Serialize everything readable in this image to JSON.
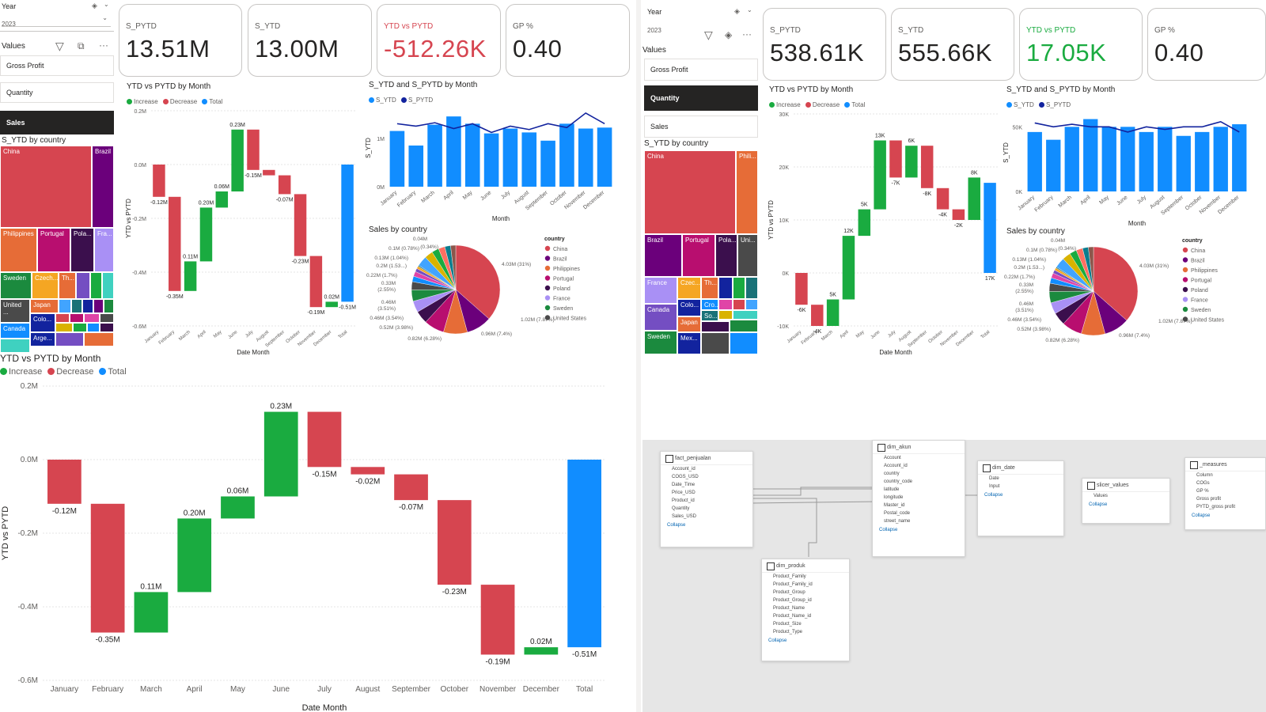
{
  "left_panel": {
    "slicer": {
      "title": "Year",
      "value": "2023"
    },
    "values_header": "Values",
    "values": [
      "Gross Profit",
      "Quantity",
      "Sales"
    ],
    "selected": "Sales",
    "kpis": [
      {
        "label": "S_PYTD",
        "value": "13.51M"
      },
      {
        "label": "S_YTD",
        "value": "13.00M"
      },
      {
        "label": "YTD vs PYTD",
        "value": "-512.26K",
        "color": "#d13438"
      },
      {
        "label": "GP %",
        "value": "0.40"
      }
    ],
    "treemap_title": "S_YTD by country",
    "treemap_labels": [
      "China",
      "Brazil",
      "Philippines",
      "Portugal",
      "Pola...",
      "Fra...",
      "Sweden",
      "Czech...",
      "Th...",
      "United ...",
      "Japan",
      "Colo...",
      "Canada",
      "Arge..."
    ],
    "waterfall_title": "YTD vs PYTD by Month",
    "combo_title": "S_YTD and S_PYTD by Month",
    "pie_title": "Sales by country",
    "pie_labels": [
      "0.04M",
      "0.1M (0.78%)",
      "(0.34%)",
      "0.13M (1.04%)",
      "0.2M (1.53...)",
      "0.22M (1.7%)",
      "0.33M",
      "(2.55%)",
      "0.46M",
      "(3.51%)",
      "0.46M (3.54%)",
      "0.52M (3.98%)",
      "0.82M (6.28%)",
      "4.03M (31%)",
      "1.02M (7.87%)",
      "0.96M (7.4%)"
    ]
  },
  "right_panel": {
    "slicer": {
      "title": "Year",
      "value": "2023"
    },
    "values_header": "Values",
    "values": [
      "Gross Profit",
      "Quantity",
      "Sales"
    ],
    "selected": "Quantity",
    "kpis": [
      {
        "label": "S_PYTD",
        "value": "538.61K"
      },
      {
        "label": "S_YTD",
        "value": "555.66K"
      },
      {
        "label": "YTD vs PYTD",
        "value": "17.05K",
        "color": "#1aab40"
      },
      {
        "label": "GP %",
        "value": "0.40"
      }
    ],
    "treemap_title": "S_YTD by country",
    "treemap_labels": [
      "China",
      "Phili...",
      "Brazil",
      "Portugal",
      "Pola...",
      "Uni...",
      "France",
      "Czec...",
      "Th...",
      "Canada",
      "Colo...",
      "Cro...",
      "So...",
      "Japan",
      "Sweden",
      "Mex..."
    ],
    "waterfall_title": "YTD vs PYTD by Month",
    "combo_title": "S_YTD and S_PYTD by Month",
    "pie_title": "Sales by country",
    "pie_labels": [
      "0.04M",
      "0.1M (0.78%)",
      "(0.34%)",
      "0.13M (1.04%)",
      "0.2M (1.53...)",
      "0.22M (1.7%)",
      "0.33M",
      "(2.55%)",
      "0.46M",
      "(3.51%)",
      "0.46M (3.54%)",
      "0.52M (3.98%)",
      "0.82M (6.28%)",
      "4.03M (31%)",
      "1.02M (7.87%)",
      "0.96M (7.4%)"
    ]
  },
  "legend_labels": {
    "increase": "Increase",
    "decrease": "Decrease",
    "total": "Total",
    "s_ytd": "S_YTD",
    "s_pytd": "S_PYTD",
    "country": "country"
  },
  "axis_labels": {
    "date_month": "Date Month",
    "month": "Month",
    "ytd_vs_pytd": "YTD vs PYTD",
    "s_ytd": "S_YTD"
  },
  "countries": [
    "China",
    "Brazil",
    "Philippines",
    "Portugal",
    "Poland",
    "France",
    "Sweden",
    "United States"
  ],
  "colors": {
    "increase": "#1aab40",
    "decrease": "#d64550",
    "total": "#118dff",
    "line": "#12239e"
  },
  "chart_data": [
    {
      "type": "waterfall",
      "id": "big",
      "title": "YTD vs PYTD by Month",
      "xlabel": "Date Month",
      "ylabel": "YTD vs PYTD",
      "categories": [
        "January",
        "February",
        "March",
        "April",
        "May",
        "June",
        "July",
        "August",
        "September",
        "October",
        "November",
        "December",
        "Total"
      ],
      "values": [
        -0.12,
        -0.35,
        0.11,
        0.2,
        0.06,
        0.23,
        -0.15,
        -0.02,
        -0.07,
        -0.23,
        -0.19,
        0.02,
        -0.51
      ],
      "data_labels": [
        "-0.12M",
        "-0.35M",
        "0.11M",
        "0.20M",
        "0.06M",
        "0.23M",
        "-0.15M",
        "-0.02M",
        "-0.07M",
        "-0.23M",
        "-0.19M",
        "0.02M",
        "-0.51M"
      ],
      "ylim": [
        -0.6,
        0.2
      ],
      "yticks": [
        0.2,
        0.0,
        -0.2,
        -0.4,
        -0.6
      ],
      "ytick_labels": [
        "0.2M",
        "0.0M",
        "-0.2M",
        "-0.4M",
        "-0.6M"
      ]
    },
    {
      "type": "waterfall",
      "id": "left-small",
      "title": "YTD vs PYTD by Month",
      "xlabel": "Date Month",
      "ylabel": "YTD vs PYTD",
      "categories": [
        "January",
        "February",
        "March",
        "April",
        "May",
        "June",
        "July",
        "August",
        "September",
        "October",
        "November",
        "December",
        "Total"
      ],
      "values": [
        -0.12,
        -0.35,
        0.11,
        0.2,
        0.06,
        0.23,
        -0.15,
        -0.02,
        -0.07,
        -0.23,
        -0.19,
        0.02,
        -0.51
      ],
      "data_labels": [
        "-0.12M",
        "-0.35M",
        "0.11M",
        "0.20M",
        "0.06M",
        "0.23M",
        "-0.15M",
        "",
        "-0.07M",
        "-0.23M",
        "-0.19M",
        "0.02M",
        "-0.51M"
      ],
      "ylim": [
        -0.6,
        0.2
      ],
      "yticks": [
        0.2,
        0.0,
        -0.2,
        -0.4,
        -0.6
      ],
      "ytick_labels": [
        "0.2M",
        "0.0M",
        "-0.2M",
        "-0.4M",
        "-0.6M"
      ]
    },
    {
      "type": "waterfall",
      "id": "right-small",
      "title": "YTD vs PYTD by Month",
      "xlabel": "Date Month",
      "ylabel": "YTD vs PYTD",
      "categories": [
        "January",
        "February",
        "March",
        "April",
        "May",
        "June",
        "July",
        "August",
        "September",
        "October",
        "November",
        "December",
        "Total"
      ],
      "values": [
        -6,
        -4,
        5,
        12,
        5,
        13,
        -7,
        6,
        -8,
        -4,
        -2,
        8,
        17
      ],
      "data_labels": [
        "-6K",
        "-4K",
        "5K",
        "12K",
        "5K",
        "13K",
        "-7K",
        "6K",
        "-8K",
        "-4K",
        "-2K",
        "8K",
        "17K"
      ],
      "ylim": [
        -10,
        30
      ],
      "yticks": [
        30,
        20,
        10,
        0,
        -10
      ],
      "ytick_labels": [
        "30K",
        "20K",
        "10K",
        "0K",
        "-10K"
      ]
    },
    {
      "type": "bar-line",
      "id": "left-combo",
      "title": "S_YTD and S_PYTD by Month",
      "xlabel": "Month",
      "ylabel": "S_YTD",
      "categories": [
        "January",
        "February",
        "March",
        "April",
        "May",
        "June",
        "July",
        "August",
        "September",
        "October",
        "November",
        "December"
      ],
      "series": [
        {
          "name": "S_YTD",
          "kind": "bar",
          "values": [
            1.15,
            0.85,
            1.28,
            1.45,
            1.3,
            1.1,
            1.2,
            1.12,
            0.95,
            1.3,
            1.2,
            1.22
          ]
        },
        {
          "name": "S_PYTD",
          "kind": "line",
          "values": [
            1.3,
            1.25,
            1.32,
            1.2,
            1.3,
            1.12,
            1.25,
            1.18,
            1.3,
            1.22,
            1.52,
            1.3
          ]
        }
      ],
      "ylim": [
        0,
        1.6
      ],
      "yticks": [
        0,
        1
      ],
      "ytick_labels": [
        "0M",
        "1M"
      ]
    },
    {
      "type": "bar-line",
      "id": "right-combo",
      "title": "S_YTD and S_PYTD by Month",
      "xlabel": "Month",
      "ylabel": "S_YTD",
      "categories": [
        "January",
        "February",
        "March",
        "April",
        "May",
        "June",
        "July",
        "August",
        "September",
        "October",
        "November",
        "December"
      ],
      "series": [
        {
          "name": "S_YTD",
          "kind": "bar",
          "values": [
            46,
            40,
            50,
            56,
            50,
            50,
            46,
            50,
            43,
            46,
            50,
            52
          ]
        },
        {
          "name": "S_PYTD",
          "kind": "line",
          "values": [
            53,
            50,
            52,
            50,
            50,
            46,
            50,
            48,
            50,
            50,
            54,
            46
          ]
        }
      ],
      "ylim": [
        0,
        60
      ],
      "yticks": [
        0,
        50
      ],
      "ytick_labels": [
        "0K",
        "50K"
      ]
    },
    {
      "type": "pie",
      "id": "pie",
      "title": "Sales by country",
      "legend_title": "country",
      "slices": [
        {
          "label": "China",
          "value": 31,
          "color": "#d64550"
        },
        {
          "label": "Brazil",
          "value": 7.87,
          "color": "#6b007b"
        },
        {
          "label": "Philippines",
          "value": 7.4,
          "color": "#e66c37"
        },
        {
          "label": "Portugal",
          "value": 6.28,
          "color": "#b80e6f"
        },
        {
          "label": "Poland",
          "value": 3.98,
          "color": "#3b0f4d"
        },
        {
          "label": "France",
          "value": 3.54,
          "color": "#a990f5"
        },
        {
          "label": "Sweden",
          "value": 3.51,
          "color": "#1b8a3e"
        },
        {
          "label": "United States",
          "value": 2.55,
          "color": "#4a4a4a"
        },
        {
          "label": "",
          "value": 1.7,
          "color": "#118dff"
        },
        {
          "label": "",
          "value": 1.53,
          "color": "#e044a7"
        },
        {
          "label": "",
          "value": 1.04,
          "color": "#744ec2"
        },
        {
          "label": "",
          "value": 0.78,
          "color": "#f5a623"
        },
        {
          "label": "",
          "value": 0.34,
          "color": "#197278"
        },
        {
          "label": "",
          "value": 3.2,
          "color": "#41a4ff"
        },
        {
          "label": "",
          "value": 2.6,
          "color": "#d9b300"
        },
        {
          "label": "",
          "value": 2.2,
          "color": "#1aab40"
        },
        {
          "label": "",
          "value": 2.0,
          "color": "#ff6f61"
        },
        {
          "label": "",
          "value": 1.8,
          "color": "#0b7d8e"
        },
        {
          "label": "",
          "value": 1.6,
          "color": "#8c564b"
        }
      ]
    }
  ],
  "model": {
    "tables": [
      {
        "name": "fact_penjualan",
        "fields": [
          "Account_id",
          "COGS_USD",
          "Date_Time",
          "Price_USD",
          "Product_id",
          "Quantity",
          "Sales_USD"
        ],
        "collapse": "Collapse"
      },
      {
        "name": "dim_akun",
        "fields": [
          "Account",
          "Account_id",
          "country",
          "country_code",
          "latitude",
          "longitude",
          "Master_id",
          "Postal_code",
          "street_name"
        ],
        "collapse": "Collapse"
      },
      {
        "name": "dim_date",
        "fields": [
          "Date",
          "Input"
        ],
        "collapse": "Collapse"
      },
      {
        "name": "slicer_values",
        "fields": [
          "Values"
        ],
        "collapse": "Collapse"
      },
      {
        "name": "_measures",
        "fields": [
          "Column",
          "COGs",
          "GP %",
          "Gross profit",
          "PYTD_gross profit"
        ],
        "collapse": "Collapse"
      },
      {
        "name": "dim_produk",
        "fields": [
          "Product_Family",
          "Product_Family_id",
          "Product_Group",
          "Product_Group_id",
          "Product_Name",
          "Product_Name_id",
          "Product_Size",
          "Product_Type"
        ],
        "collapse": "Collapse"
      }
    ],
    "relation_labels": [
      "1",
      "1"
    ]
  }
}
